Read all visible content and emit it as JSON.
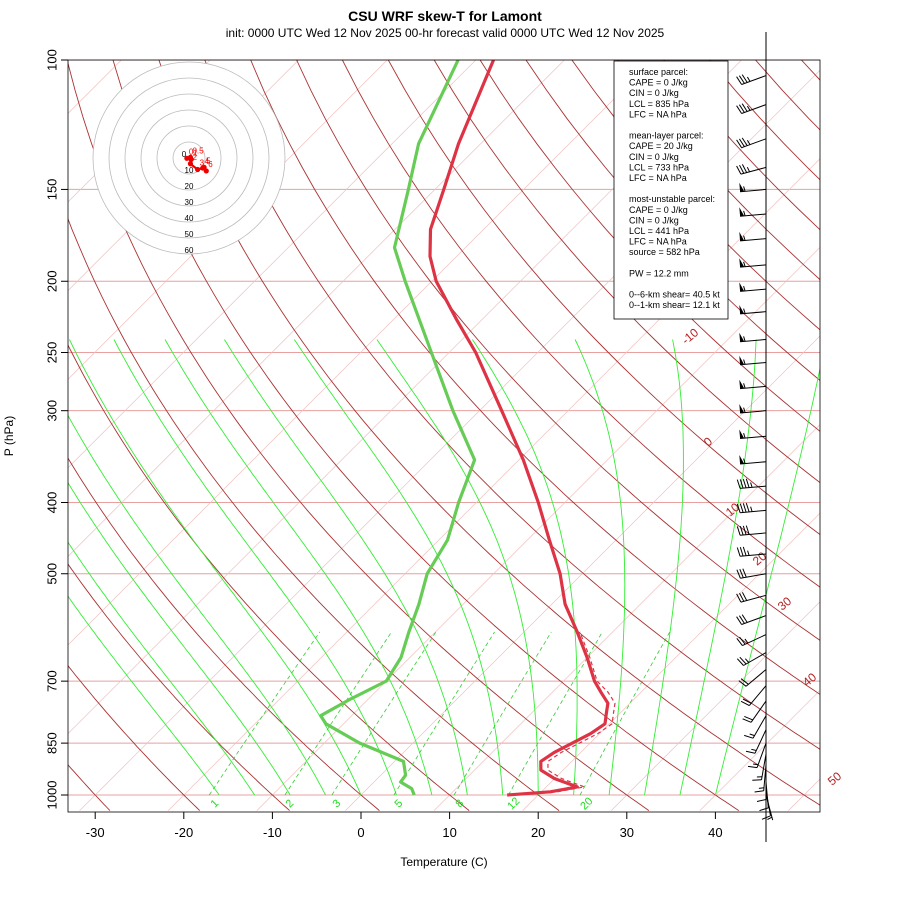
{
  "title": "CSU WRF skew-T for Lamont",
  "subtitle": "init: 0000 UTC Wed 12 Nov 2025    00-hr forecast valid 0000 UTC Wed 12 Nov 2025",
  "chart_data": {
    "type": "line",
    "title": "CSU WRF skew-T for Lamont",
    "xlabel": "Temperature (C)",
    "ylabel": "P (hPa)",
    "x_ticks": [
      "-30",
      "-20",
      "-10",
      "0",
      "10",
      "20",
      "30",
      "40"
    ],
    "y_ticks": [
      "100",
      "150",
      "200",
      "250",
      "300",
      "400",
      "500",
      "700",
      "850",
      "1000"
    ],
    "pressure_axis": "log",
    "skew": true,
    "temperature_profile": {
      "name": "Temperature",
      "color": "#dd3344",
      "points": [
        [
          1000,
          16.5
        ],
        [
          990,
          21.0
        ],
        [
          975,
          23.5
        ],
        [
          950,
          20.0
        ],
        [
          925,
          17.5
        ],
        [
          900,
          16.5
        ],
        [
          875,
          17.0
        ],
        [
          850,
          18.0
        ],
        [
          825,
          19.0
        ],
        [
          800,
          19.5
        ],
        [
          775,
          18.5
        ],
        [
          750,
          17.5
        ],
        [
          725,
          15.5
        ],
        [
          700,
          13.5
        ],
        [
          650,
          10.0
        ],
        [
          600,
          6.0
        ],
        [
          550,
          1.5
        ],
        [
          500,
          -2.5
        ],
        [
          450,
          -7.5
        ],
        [
          400,
          -13.0
        ],
        [
          350,
          -19.5
        ],
        [
          300,
          -27.5
        ],
        [
          250,
          -37.0
        ],
        [
          225,
          -43.0
        ],
        [
          200,
          -49.5
        ],
        [
          185,
          -53.0
        ],
        [
          170,
          -56.0
        ],
        [
          150,
          -59.0
        ],
        [
          130,
          -62.5
        ],
        [
          110,
          -66.0
        ],
        [
          100,
          -68.0
        ]
      ]
    },
    "dewpoint_profile": {
      "name": "Dewpoint",
      "color": "#66cc55",
      "points": [
        [
          1000,
          6.0
        ],
        [
          980,
          5.0
        ],
        [
          960,
          3.0
        ],
        [
          940,
          2.8
        ],
        [
          900,
          1.0
        ],
        [
          850,
          -6.0
        ],
        [
          800,
          -12.0
        ],
        [
          780,
          -13.5
        ],
        [
          740,
          -12.0
        ],
        [
          700,
          -10.0
        ],
        [
          650,
          -11.0
        ],
        [
          600,
          -13.0
        ],
        [
          550,
          -15.0
        ],
        [
          500,
          -17.5
        ],
        [
          450,
          -19.0
        ],
        [
          400,
          -22.0
        ],
        [
          350,
          -25.0
        ],
        [
          300,
          -33.0
        ],
        [
          250,
          -42.0
        ],
        [
          200,
          -53.0
        ],
        [
          180,
          -58.0
        ],
        [
          150,
          -63.0
        ],
        [
          130,
          -67.0
        ],
        [
          100,
          -72.0
        ]
      ]
    },
    "parcel_profile": {
      "name": "Parcel",
      "color": "#dd3344",
      "dashed": true
    },
    "isotherm_labels": [
      "-10",
      "0",
      "10",
      "20",
      "30",
      "40",
      "50"
    ],
    "mixing_ratio_labels": [
      "1",
      "2",
      "3",
      "5",
      "8",
      "12",
      "20"
    ],
    "hodograph": {
      "ring_labels": [
        "10",
        "20",
        "30",
        "40",
        "50",
        "60"
      ],
      "center_label": "0",
      "points": [
        {
          "label": "0",
          "u": -1.5,
          "v": -0.2
        },
        {
          "label": "0.5",
          "u": 1.0,
          "v": 0.5
        },
        {
          "label": "1",
          "u": 1.5,
          "v": -1.0
        },
        {
          "label": "2",
          "u": 1.0,
          "v": -4.0
        },
        {
          "label": "3",
          "u": 6.0,
          "v": -8.0
        },
        {
          "label": "4",
          "u": 9.5,
          "v": -7.0
        },
        {
          "label": "5",
          "u": 10.5,
          "v": -6.5
        },
        {
          "label": "6",
          "u": 12.0,
          "v": -9.0
        }
      ]
    },
    "legend": {
      "blocks": [
        [
          "surface parcel:",
          "CAPE = 0 J/kg",
          "CIN = 0 J/kg",
          "LCL = 835 hPa",
          "LFC = NA hPa"
        ],
        [
          "mean-layer parcel:",
          "CAPE = 20 J/kg",
          "CIN = 0 J/kg",
          "LCL = 733 hPa",
          "LFC = NA hPa"
        ],
        [
          "most-unstable parcel:",
          "CAPE = 0 J/kg",
          "CIN = 0 J/kg",
          "LCL = 441 hPa",
          "LFC = NA hPa",
          "source = 582 hPa"
        ],
        [
          "PW =  12.2 mm"
        ],
        [
          "0--6-km shear= 40.5 kt",
          "0--1-km shear= 12.1 kt"
        ]
      ],
      "placement": "top-right"
    },
    "wind_barbs": [
      {
        "p": 105,
        "speed": 35,
        "dir": 250
      },
      {
        "p": 115,
        "speed": 35,
        "dir": 250
      },
      {
        "p": 128,
        "speed": 35,
        "dir": 250
      },
      {
        "p": 140,
        "speed": 35,
        "dir": 255
      },
      {
        "p": 150,
        "speed": 55,
        "dir": 265
      },
      {
        "p": 162,
        "speed": 55,
        "dir": 265
      },
      {
        "p": 175,
        "speed": 55,
        "dir": 265
      },
      {
        "p": 190,
        "speed": 55,
        "dir": 265
      },
      {
        "p": 205,
        "speed": 55,
        "dir": 265
      },
      {
        "p": 220,
        "speed": 55,
        "dir": 265
      },
      {
        "p": 240,
        "speed": 55,
        "dir": 265
      },
      {
        "p": 258,
        "speed": 55,
        "dir": 265
      },
      {
        "p": 278,
        "speed": 55,
        "dir": 265
      },
      {
        "p": 300,
        "speed": 55,
        "dir": 265
      },
      {
        "p": 325,
        "speed": 55,
        "dir": 265
      },
      {
        "p": 352,
        "speed": 55,
        "dir": 265
      },
      {
        "p": 380,
        "speed": 45,
        "dir": 265
      },
      {
        "p": 410,
        "speed": 45,
        "dir": 265
      },
      {
        "p": 440,
        "speed": 40,
        "dir": 265
      },
      {
        "p": 470,
        "speed": 35,
        "dir": 265
      },
      {
        "p": 500,
        "speed": 30,
        "dir": 260
      },
      {
        "p": 535,
        "speed": 30,
        "dir": 255
      },
      {
        "p": 570,
        "speed": 30,
        "dir": 250
      },
      {
        "p": 605,
        "speed": 25,
        "dir": 245
      },
      {
        "p": 640,
        "speed": 25,
        "dir": 240
      },
      {
        "p": 675,
        "speed": 20,
        "dir": 230
      },
      {
        "p": 710,
        "speed": 20,
        "dir": 220
      },
      {
        "p": 745,
        "speed": 20,
        "dir": 215
      },
      {
        "p": 780,
        "speed": 15,
        "dir": 210
      },
      {
        "p": 815,
        "speed": 15,
        "dir": 205
      },
      {
        "p": 850,
        "speed": 15,
        "dir": 200
      },
      {
        "p": 880,
        "speed": 15,
        "dir": 190
      },
      {
        "p": 910,
        "speed": 15,
        "dir": 185
      },
      {
        "p": 935,
        "speed": 10,
        "dir": 180
      },
      {
        "p": 960,
        "speed": 10,
        "dir": 175
      },
      {
        "p": 985,
        "speed": 10,
        "dir": 170
      },
      {
        "p": 1000,
        "speed": 5,
        "dir": 165
      }
    ]
  }
}
